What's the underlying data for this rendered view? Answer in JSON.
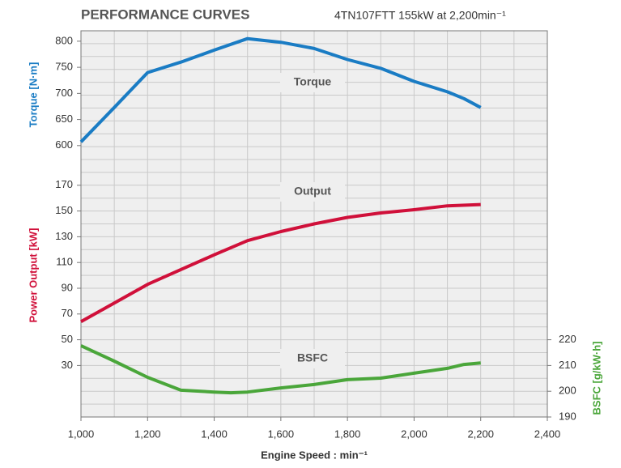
{
  "chart_data": {
    "type": "line",
    "title": "PERFORMANCE CURVES",
    "subtitle": "4TN107FTT 155kW at 2,200min⁻¹",
    "xlabel": "Engine Speed : min⁻¹",
    "ylabel": "Torque [N·m]",
    "y2label": "Power Output [kW]",
    "y3label": "BSFC [g/kW·h]",
    "annotations": [
      "Torque",
      "Output",
      "BSFC"
    ],
    "xlim": [
      1000,
      2400
    ],
    "xticks": [
      {
        "value": 1000,
        "label": "1,000"
      },
      {
        "value": 1200,
        "label": "1,200"
      },
      {
        "value": 1400,
        "label": "1,400"
      },
      {
        "value": 1600,
        "label": "1,600"
      },
      {
        "value": 1800,
        "label": "1,800"
      },
      {
        "value": 2000,
        "label": "2,000"
      },
      {
        "value": 2200,
        "label": "2,200"
      },
      {
        "value": 2400,
        "label": "2,400"
      }
    ],
    "ylim": [
      80,
      820
    ],
    "yticks": [
      600,
      650,
      700,
      750,
      800
    ],
    "y2lim": [
      -10,
      290
    ],
    "y2ticks": [
      30,
      50,
      70,
      90,
      110,
      130,
      150,
      170
    ],
    "y3lim": [
      190,
      340
    ],
    "y3ticks": [
      190,
      200,
      210,
      220
    ],
    "grid": true,
    "series": [
      {
        "name": "Torque",
        "color": "#1a7cc4",
        "axis": "y",
        "x": [
          1000,
          1100,
          1200,
          1300,
          1400,
          1500,
          1600,
          1700,
          1800,
          1900,
          2000,
          2100,
          2150,
          2200
        ],
        "values": [
          607,
          673,
          740,
          760,
          783,
          805,
          798,
          786,
          765,
          748,
          723,
          703,
          690,
          673
        ]
      },
      {
        "name": "Output",
        "color": "#d0103a",
        "axis": "y2",
        "x": [
          1000,
          1200,
          1300,
          1400,
          1500,
          1600,
          1700,
          1800,
          1900,
          2000,
          2100,
          2200
        ],
        "values": [
          64,
          93,
          104.5,
          116,
          127,
          134,
          140,
          145,
          148.5,
          151,
          154,
          155
        ]
      },
      {
        "name": "BSFC",
        "color": "#4aa63a",
        "axis": "y3",
        "x": [
          1000,
          1100,
          1200,
          1300,
          1400,
          1450,
          1500,
          1600,
          1700,
          1800,
          1900,
          2000,
          2100,
          2150,
          2200
        ],
        "values": [
          217.7,
          211.7,
          205.4,
          200.4,
          199.7,
          199.4,
          199.7,
          201.3,
          202.6,
          204.5,
          205.1,
          207,
          208.9,
          210.4,
          211
        ]
      }
    ]
  }
}
